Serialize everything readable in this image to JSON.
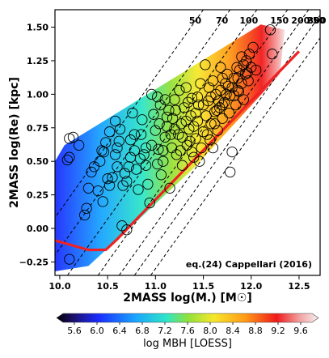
{
  "chart_data": {
    "type": "scatter",
    "title": "",
    "xlabel": "2MASS log(M.) [M☉]",
    "ylabel": "2MASS log(Re) [kpc]",
    "xlim": [
      9.95,
      12.72
    ],
    "ylim": [
      -0.35,
      1.63
    ],
    "xticks": [
      10.0,
      10.5,
      11.0,
      11.5,
      12.0,
      12.5
    ],
    "xtick_labels": [
      "10.0",
      "10.5",
      "11.0",
      "11.5",
      "12.0",
      "12.5"
    ],
    "yticks": [
      -0.25,
      0.0,
      0.25,
      0.5,
      0.75,
      1.0,
      1.25,
      1.5
    ],
    "ytick_labels": [
      "−0.25",
      "0.00",
      "0.25",
      "0.50",
      "0.75",
      "1.00",
      "1.25",
      "1.50"
    ],
    "annotation": "eq.(24) Cappellari (2016)",
    "velocity_lines": {
      "labels": [
        "50",
        "70",
        "100",
        "150",
        "200",
        "250",
        "300"
      ],
      "x_at_top": [
        11.5,
        11.78,
        12.06,
        12.38,
        12.6,
        12.76,
        12.93
      ]
    },
    "zone_of_exclusion": {
      "color": "#ee2222",
      "points": [
        [
          9.95,
          -0.09
        ],
        [
          10.3,
          -0.16
        ],
        [
          10.48,
          -0.16
        ],
        [
          10.6,
          -0.08
        ],
        [
          12.5,
          1.32
        ]
      ]
    },
    "points": [
      [
        10.1,
        -0.23
      ],
      [
        10.08,
        0.51
      ],
      [
        10.1,
        0.53
      ],
      [
        10.1,
        0.67
      ],
      [
        10.14,
        0.68
      ],
      [
        10.26,
        0.1
      ],
      [
        10.28,
        0.15
      ],
      [
        10.3,
        0.3
      ],
      [
        10.33,
        0.42
      ],
      [
        10.36,
        0.46
      ],
      [
        10.4,
        0.28
      ],
      [
        10.42,
        0.5
      ],
      [
        10.46,
        0.57
      ],
      [
        10.48,
        0.64
      ],
      [
        10.5,
        0.37
      ],
      [
        10.52,
        0.72
      ],
      [
        10.55,
        0.38
      ],
      [
        10.58,
        0.55
      ],
      [
        10.6,
        0.6
      ],
      [
        10.62,
        0.65
      ],
      [
        10.63,
        0.74
      ],
      [
        10.65,
        0.02
      ],
      [
        10.66,
        0.32
      ],
      [
        10.68,
        0.41
      ],
      [
        10.7,
        -0.01
      ],
      [
        10.72,
        0.46
      ],
      [
        10.74,
        0.53
      ],
      [
        10.76,
        0.86
      ],
      [
        10.78,
        0.58
      ],
      [
        10.8,
        0.44
      ],
      [
        10.82,
        0.29
      ],
      [
        10.85,
        0.7
      ],
      [
        10.86,
        0.81
      ],
      [
        10.88,
        0.55
      ],
      [
        10.9,
        0.47
      ],
      [
        10.92,
        0.33
      ],
      [
        10.94,
        0.19
      ],
      [
        10.96,
        0.62
      ],
      [
        10.98,
        0.85
      ],
      [
        11.0,
        0.73
      ],
      [
        11.02,
        0.98
      ],
      [
        11.03,
        0.59
      ],
      [
        11.05,
        0.92
      ],
      [
        11.06,
        0.4
      ],
      [
        11.08,
        0.5
      ],
      [
        11.1,
        0.68
      ],
      [
        11.12,
        0.76
      ],
      [
        11.14,
        0.88
      ],
      [
        11.15,
        0.3
      ],
      [
        11.17,
        0.6
      ],
      [
        11.18,
        0.82
      ],
      [
        11.2,
        0.96
      ],
      [
        11.22,
        0.55
      ],
      [
        11.24,
        0.7
      ],
      [
        11.25,
        1.03
      ],
      [
        11.27,
        0.78
      ],
      [
        11.28,
        0.47
      ],
      [
        11.3,
        0.9
      ],
      [
        11.32,
        1.05
      ],
      [
        11.33,
        0.62
      ],
      [
        11.35,
        0.74
      ],
      [
        11.37,
        0.84
      ],
      [
        11.38,
        0.97
      ],
      [
        11.4,
        0.53
      ],
      [
        11.42,
        0.67
      ],
      [
        11.44,
        0.8
      ],
      [
        11.45,
        0.92
      ],
      [
        11.47,
        1.08
      ],
      [
        11.48,
        0.6
      ],
      [
        11.5,
        0.72
      ],
      [
        11.52,
        1.22
      ],
      [
        11.53,
        0.84
      ],
      [
        11.55,
        0.95
      ],
      [
        11.57,
        0.66
      ],
      [
        11.58,
        0.78
      ],
      [
        11.6,
        1.1
      ],
      [
        11.62,
        0.87
      ],
      [
        11.63,
        1.0
      ],
      [
        11.65,
        0.73
      ],
      [
        11.67,
        0.9
      ],
      [
        11.68,
        1.03
      ],
      [
        11.7,
        0.82
      ],
      [
        11.72,
        0.94
      ],
      [
        11.73,
        1.08
      ],
      [
        11.75,
        1.15
      ],
      [
        11.77,
        0.86
      ],
      [
        11.78,
        0.99
      ],
      [
        11.8,
        1.05
      ],
      [
        11.82,
        1.12
      ],
      [
        11.84,
        0.92
      ],
      [
        11.85,
        1.2
      ],
      [
        11.87,
        1.02
      ],
      [
        11.88,
        1.18
      ],
      [
        11.9,
        1.08
      ],
      [
        11.92,
        0.96
      ],
      [
        11.94,
        1.15
      ],
      [
        11.95,
        1.25
      ],
      [
        11.97,
        1.1
      ],
      [
        11.98,
        1.3
      ],
      [
        12.0,
        1.2
      ],
      [
        12.02,
        1.35
      ],
      [
        12.05,
        1.18
      ],
      [
        11.78,
        0.42
      ],
      [
        11.8,
        0.57
      ],
      [
        12.2,
        1.48
      ],
      [
        12.22,
        1.3
      ],
      [
        10.2,
        0.62
      ],
      [
        10.45,
        0.2
      ],
      [
        10.58,
        0.8
      ],
      [
        10.78,
        0.7
      ],
      [
        10.96,
        1.0
      ],
      [
        11.04,
        0.78
      ],
      [
        11.08,
        0.58
      ],
      [
        11.12,
        0.83
      ],
      [
        11.16,
        0.7
      ],
      [
        11.21,
        0.88
      ],
      [
        11.28,
        0.68
      ],
      [
        11.32,
        0.8
      ],
      [
        11.36,
        0.65
      ],
      [
        11.4,
        0.76
      ],
      [
        11.44,
        0.98
      ],
      [
        11.5,
        0.92
      ],
      [
        11.54,
        0.7
      ],
      [
        11.58,
        0.98
      ],
      [
        11.62,
        0.78
      ],
      [
        11.66,
        0.95
      ],
      [
        11.7,
        0.92
      ],
      [
        11.74,
        1.0
      ],
      [
        11.68,
        1.2
      ],
      [
        11.82,
        0.99
      ],
      [
        11.86,
        1.12
      ],
      [
        11.6,
        0.6
      ],
      [
        11.46,
        0.5
      ],
      [
        11.38,
        0.57
      ],
      [
        11.26,
        0.58
      ],
      [
        11.2,
        0.74
      ],
      [
        11.02,
        0.48
      ],
      [
        10.9,
        0.6
      ],
      [
        10.84,
        0.52
      ],
      [
        10.74,
        0.66
      ],
      [
        10.7,
        0.35
      ],
      [
        10.6,
        0.46
      ],
      [
        10.52,
        0.32
      ],
      [
        10.44,
        0.58
      ],
      [
        11.92,
        1.22
      ],
      [
        11.9,
        1.28
      ],
      [
        11.76,
        1.06
      ],
      [
        11.64,
        0.88
      ],
      [
        11.42,
        0.86
      ],
      [
        11.34,
        0.94
      ],
      [
        11.1,
        0.96
      ],
      [
        11.56,
        1.05
      ],
      [
        11.7,
        1.12
      ],
      [
        11.86,
        1.03
      ],
      [
        11.96,
        1.16
      ]
    ],
    "colorbar": {
      "label": "log MBH [LOESS]",
      "min": 5.4,
      "max": 9.8,
      "ticks": [
        5.6,
        6.0,
        6.4,
        6.8,
        7.2,
        7.6,
        8.0,
        8.4,
        8.8,
        9.2,
        9.6
      ],
      "tick_labels": [
        "5.6",
        "6.0",
        "6.4",
        "6.8",
        "7.2",
        "7.6",
        "8.0",
        "8.4",
        "8.8",
        "9.2",
        "9.6"
      ]
    }
  }
}
